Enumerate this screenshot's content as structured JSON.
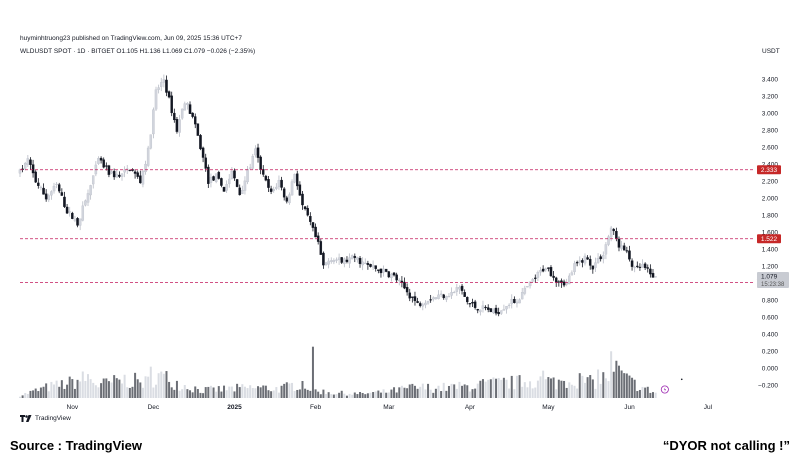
{
  "header": {
    "published": "huyminhtruong23 published on TradingView.com, Jun 09, 2025 15:36 UTC+7",
    "symbol_line": "WLDUSDT SPOT · 1D · BITGET  O1.105  H1.136  L1.069  C1.079  −0.026 (−2.35%)",
    "currency": "USDT"
  },
  "footer": {
    "brand": "TradingView",
    "source": "Source : TradingView",
    "disclaimer": "“DYOR  not calling !”"
  },
  "colors": {
    "up": "#d1d4dc",
    "down": "#131722",
    "level_line": "#c2185b",
    "level_tag": "#c62828",
    "volume_up": "#dadde3",
    "volume_down": "#6b6e75"
  },
  "chart_data": {
    "type": "candlestick",
    "timeframe": "1D",
    "y_axis": {
      "side": "right",
      "ticks": [
        "3.400",
        "3.200",
        "3.000",
        "2.800",
        "2.600",
        "2.400",
        "2.200",
        "2.000",
        "1.800",
        "1.600",
        "1.400",
        "1.200",
        "1.000",
        "0.800",
        "0.600",
        "0.400",
        "0.200",
        "0.000",
        "−0.200"
      ],
      "tick_values": [
        3.4,
        3.2,
        3.0,
        2.8,
        2.6,
        2.4,
        2.2,
        2.0,
        1.8,
        1.6,
        1.4,
        1.2,
        1.0,
        0.8,
        0.6,
        0.4,
        0.2,
        0.0,
        -0.2
      ],
      "range": [
        -0.35,
        3.6
      ]
    },
    "x_axis": {
      "labels": [
        "Nov",
        "Dec",
        "2025",
        "Feb",
        "Mar",
        "Apr",
        "May",
        "Jun",
        "Jul"
      ],
      "label_days": [
        20,
        51,
        82,
        113,
        141,
        172,
        202,
        233,
        263
      ],
      "bold": [
        "2025"
      ],
      "range_days": [
        0,
        281
      ]
    },
    "levels": [
      {
        "value": 2.333,
        "label": "2.333"
      },
      {
        "value": 1.522,
        "label": "1.522"
      },
      {
        "value": 1.006,
        "label": "1.006"
      }
    ],
    "last_price": {
      "value": 1.079,
      "label": "1.079",
      "countdown": "15:23:38"
    },
    "price_anchors": [
      [
        0,
        2.3
      ],
      [
        3,
        2.45
      ],
      [
        6,
        2.2
      ],
      [
        10,
        2.0
      ],
      [
        14,
        2.15
      ],
      [
        18,
        1.85
      ],
      [
        22,
        1.7
      ],
      [
        26,
        2.05
      ],
      [
        30,
        2.45
      ],
      [
        34,
        2.3
      ],
      [
        38,
        2.25
      ],
      [
        42,
        2.35
      ],
      [
        46,
        2.2
      ],
      [
        49,
        2.55
      ],
      [
        52,
        3.25
      ],
      [
        55,
        3.4
      ],
      [
        57,
        3.15
      ],
      [
        60,
        2.8
      ],
      [
        63,
        3.15
      ],
      [
        66,
        2.95
      ],
      [
        69,
        2.6
      ],
      [
        72,
        2.2
      ],
      [
        75,
        2.25
      ],
      [
        78,
        2.1
      ],
      [
        81,
        2.3
      ],
      [
        84,
        2.05
      ],
      [
        87,
        2.3
      ],
      [
        90,
        2.55
      ],
      [
        93,
        2.25
      ],
      [
        96,
        2.05
      ],
      [
        99,
        2.2
      ],
      [
        102,
        1.95
      ],
      [
        105,
        2.3
      ],
      [
        108,
        1.9
      ],
      [
        111,
        1.7
      ],
      [
        114,
        1.45
      ],
      [
        116,
        1.2
      ],
      [
        119,
        1.3
      ],
      [
        123,
        1.25
      ],
      [
        128,
        1.3
      ],
      [
        133,
        1.2
      ],
      [
        138,
        1.15
      ],
      [
        143,
        1.08
      ],
      [
        148,
        0.9
      ],
      [
        152,
        0.75
      ],
      [
        156,
        0.82
      ],
      [
        160,
        0.85
      ],
      [
        165,
        0.88
      ],
      [
        168,
        0.95
      ],
      [
        171,
        0.78
      ],
      [
        174,
        0.72
      ],
      [
        178,
        0.7
      ],
      [
        182,
        0.65
      ],
      [
        186,
        0.75
      ],
      [
        190,
        0.8
      ],
      [
        194,
        0.95
      ],
      [
        198,
        1.1
      ],
      [
        201,
        1.2
      ],
      [
        205,
        1.05
      ],
      [
        209,
        1.0
      ],
      [
        212,
        1.2
      ],
      [
        216,
        1.3
      ],
      [
        219,
        1.2
      ],
      [
        223,
        1.35
      ],
      [
        226,
        1.65
      ],
      [
        229,
        1.45
      ],
      [
        232,
        1.35
      ],
      [
        235,
        1.15
      ],
      [
        238,
        1.2
      ],
      [
        241,
        1.1
      ],
      [
        243,
        1.079
      ]
    ],
    "volume_anchors": [
      [
        0,
        0.05
      ],
      [
        10,
        0.2
      ],
      [
        20,
        0.3
      ],
      [
        26,
        0.4
      ],
      [
        30,
        0.25
      ],
      [
        40,
        0.35
      ],
      [
        49,
        0.3
      ],
      [
        52,
        0.45
      ],
      [
        56,
        0.38
      ],
      [
        62,
        0.25
      ],
      [
        70,
        0.15
      ],
      [
        80,
        0.18
      ],
      [
        90,
        0.2
      ],
      [
        100,
        0.18
      ],
      [
        108,
        0.3
      ],
      [
        112,
        0.15
      ],
      [
        120,
        0.1
      ],
      [
        130,
        0.08
      ],
      [
        140,
        0.12
      ],
      [
        150,
        0.2
      ],
      [
        160,
        0.2
      ],
      [
        170,
        0.22
      ],
      [
        180,
        0.28
      ],
      [
        190,
        0.3
      ],
      [
        198,
        0.35
      ],
      [
        205,
        0.3
      ],
      [
        212,
        0.38
      ],
      [
        218,
        0.3
      ],
      [
        224,
        0.4
      ],
      [
        228,
        0.55
      ],
      [
        232,
        0.35
      ],
      [
        238,
        0.2
      ],
      [
        243,
        0.1
      ]
    ],
    "volume_spikes": [
      [
        112,
        0.9
      ],
      [
        226,
        0.82
      ],
      [
        50,
        0.55
      ],
      [
        200,
        0.48
      ],
      [
        221,
        0.5
      ]
    ]
  }
}
